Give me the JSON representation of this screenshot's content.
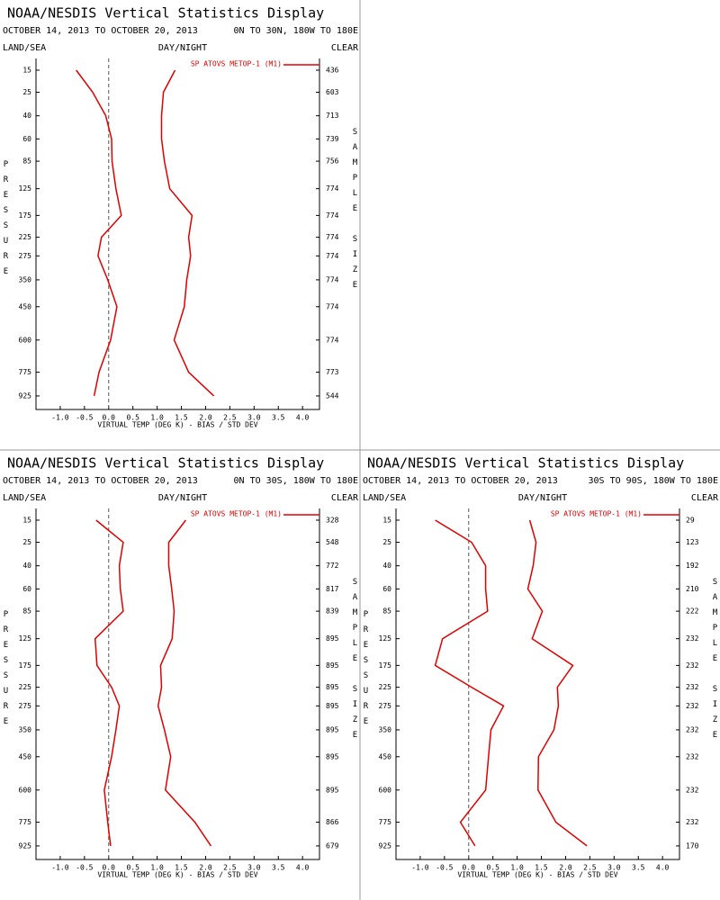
{
  "chart_data": [
    {
      "type": "line",
      "title": "NOAA/NESDIS Vertical Statistics Display",
      "subtitle": "OCTOBER 14, 2013 TO OCTOBER 20, 2013",
      "region": "0N TO 30N, 180W TO 180E",
      "left_header": "LAND/SEA",
      "center_header": "DAY/NIGHT",
      "right_header": "CLEAR",
      "ylabel": "PRESSURE",
      "y2label": "SAMPLE SIZE",
      "xlabel": "VIRTUAL TEMP (DEG K) - BIAS / STD DEV",
      "y": [
        15,
        25,
        40,
        60,
        85,
        125,
        175,
        225,
        275,
        350,
        450,
        600,
        775,
        925
      ],
      "ylim": [
        10,
        1000
      ],
      "yticks": [
        15,
        25,
        40,
        60,
        85,
        125,
        175,
        225,
        275,
        350,
        450,
        600,
        775,
        925
      ],
      "xlim": [
        -1.5,
        4.35
      ],
      "xticks": [
        {
          "value": -1,
          "label": "-1.0"
        },
        -0.5,
        {
          "value": 0,
          "label": "0.0"
        },
        0.5,
        {
          "value": 1,
          "label": "1.0"
        },
        1.5,
        {
          "value": 2,
          "label": "2.0"
        },
        2.5,
        {
          "value": 3,
          "label": "3.0"
        },
        3.5,
        {
          "value": 4,
          "label": "4.0"
        }
      ],
      "sample_size": [
        436,
        603,
        713,
        739,
        756,
        774,
        774,
        774,
        774,
        774,
        774,
        774,
        773,
        544
      ],
      "legend": "upper right",
      "zero_line": true,
      "series": [
        {
          "name": "SP ATOVS METOP-1 (M1)",
          "color": "#e00000",
          "values": [
            -0.67,
            -0.33,
            -0.06,
            0.06,
            0.07,
            0.15,
            0.26,
            -0.15,
            -0.22,
            -0.02,
            0.17,
            0.04,
            -0.2,
            -0.3
          ],
          "std_dev": [
            1.37,
            1.13,
            1.09,
            1.09,
            1.15,
            1.26,
            1.72,
            1.65,
            1.69,
            1.61,
            1.56,
            1.35,
            1.65,
            2.17
          ]
        }
      ]
    },
    {
      "type": "line",
      "title": "NOAA/NESDIS Vertical Statistics Display",
      "subtitle": "OCTOBER 14, 2013 TO OCTOBER 20, 2013",
      "region": "0N TO 30S, 180W TO 180E",
      "left_header": "LAND/SEA",
      "center_header": "DAY/NIGHT",
      "right_header": "CLEAR",
      "ylabel": "PRESSURE",
      "y2label": "SAMPLE SIZE",
      "xlabel": "VIRTUAL TEMP (DEG K) - BIAS / STD DEV",
      "y": [
        15,
        25,
        40,
        60,
        85,
        125,
        175,
        225,
        275,
        350,
        450,
        600,
        775,
        925
      ],
      "ylim": [
        10,
        1000
      ],
      "yticks": [
        15,
        25,
        40,
        60,
        85,
        125,
        175,
        225,
        275,
        350,
        450,
        600,
        775,
        925
      ],
      "xlim": [
        -1.5,
        4.35
      ],
      "xticks": [
        {
          "value": -1,
          "label": "-1.0"
        },
        -0.5,
        {
          "value": 0,
          "label": "0.0"
        },
        0.5,
        {
          "value": 1,
          "label": "1.0"
        },
        1.5,
        {
          "value": 2,
          "label": "2.0"
        },
        2.5,
        {
          "value": 3,
          "label": "3.0"
        },
        3.5,
        {
          "value": 4,
          "label": "4.0"
        }
      ],
      "sample_size": [
        328,
        548,
        772,
        817,
        839,
        895,
        895,
        895,
        895,
        895,
        895,
        895,
        866,
        679
      ],
      "legend": "upper right",
      "zero_line": true,
      "series": [
        {
          "name": "SP ATOVS METOP-1 (M1)",
          "color": "#e00000",
          "values": [
            -0.26,
            0.3,
            0.22,
            0.24,
            0.3,
            -0.28,
            -0.24,
            0.06,
            0.22,
            0.15,
            0.06,
            -0.09,
            -0.02,
            0.04
          ],
          "std_dev": [
            1.59,
            1.24,
            1.24,
            1.3,
            1.35,
            1.31,
            1.07,
            1.09,
            1.02,
            1.15,
            1.28,
            1.17,
            1.78,
            2.11
          ]
        }
      ]
    },
    {
      "type": "line",
      "title": "NOAA/NESDIS Vertical Statistics Display",
      "subtitle": "OCTOBER 14, 2013 TO OCTOBER 20, 2013",
      "region": "30S TO 90S, 180W TO 180E",
      "left_header": "LAND/SEA",
      "center_header": "DAY/NIGHT",
      "right_header": "CLEAR",
      "ylabel": "PRESSURE",
      "y2label": "SAMPLE SIZE",
      "xlabel": "VIRTUAL TEMP (DEG K) - BIAS / STD DEV",
      "y": [
        15,
        25,
        40,
        60,
        85,
        125,
        175,
        225,
        275,
        350,
        450,
        600,
        775,
        925
      ],
      "ylim": [
        10,
        1000
      ],
      "yticks": [
        15,
        25,
        40,
        60,
        85,
        125,
        175,
        225,
        275,
        350,
        450,
        600,
        775,
        925
      ],
      "xlim": [
        -1.5,
        4.35
      ],
      "xticks": [
        {
          "value": -1,
          "label": "-1.0"
        },
        -0.5,
        {
          "value": 0,
          "label": "0.0"
        },
        0.5,
        {
          "value": 1,
          "label": "1.0"
        },
        1.5,
        {
          "value": 2,
          "label": "2.0"
        },
        2.5,
        {
          "value": 3,
          "label": "3.0"
        },
        3.5,
        {
          "value": 4,
          "label": "4.0"
        }
      ],
      "sample_size": [
        29,
        123,
        192,
        210,
        222,
        232,
        232,
        232,
        232,
        232,
        232,
        232,
        232,
        170
      ],
      "legend": "upper right",
      "zero_line": true,
      "series": [
        {
          "name": "SP ATOVS METOP-1 (M1)",
          "color": "#e00000",
          "values": [
            -0.69,
            0.06,
            0.35,
            0.35,
            0.39,
            -0.54,
            -0.69,
            0.06,
            0.72,
            0.46,
            0.41,
            0.35,
            -0.17,
            0.13
          ],
          "std_dev": [
            1.26,
            1.39,
            1.33,
            1.22,
            1.52,
            1.31,
            2.15,
            1.83,
            1.85,
            1.76,
            1.44,
            1.43,
            1.8,
            2.44
          ]
        }
      ]
    }
  ]
}
